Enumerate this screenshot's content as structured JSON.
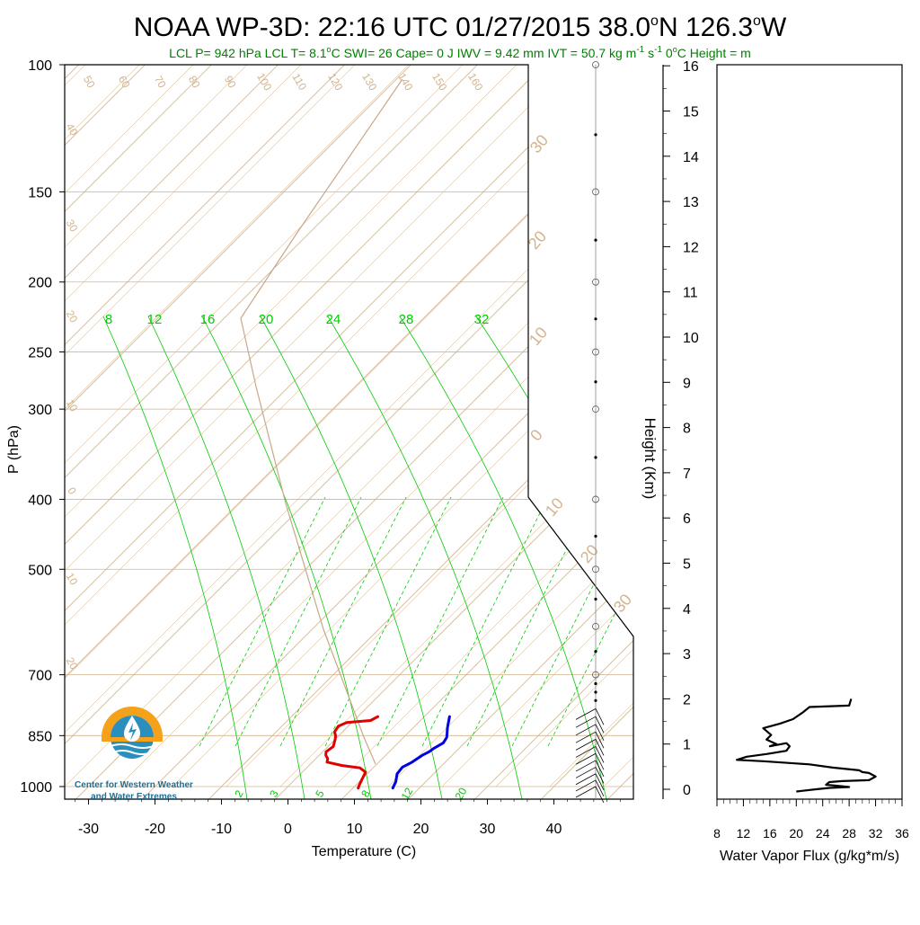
{
  "title": "NOAA WP-3D: 22:16 UTC 01/27/2015  38.0",
  "title_deg1": "o",
  "title_mid": "N 126.3",
  "title_deg2": "o",
  "title_end": "W",
  "subtitle_a": "LCL P= 942 hPa  LCL T= 8.1",
  "subtitle_b": "C  SWI= 26  Cape= 0 J  IWV = 9.42 mm  IVT = 50.7 kg m",
  "subtitle_sup1": "-1",
  "subtitle_s": " s",
  "subtitle_sup2": "-1",
  "subtitle_c": "  0",
  "subtitle_d": "C Height =  m",
  "subtitle_deg": "o",
  "logo": {
    "line1": "Center for Western Weather",
    "line2": "and Water Extremes"
  },
  "colors": {
    "temperature": "#e00000",
    "dewpoint": "#0000e0",
    "isotherm": "#d2b48c",
    "mixing_ratio": "#00cc00",
    "title": "#000000",
    "subtitle": "#008000",
    "logo_orange": "#f5a11a",
    "logo_blue": "#2a8fbd",
    "logo_text": "#1f6f95"
  },
  "chart_data": [
    {
      "type": "line",
      "name": "skew-t",
      "xlabel": "Temperature (C)",
      "ylabel": "P (hPa)",
      "x_ticks": [
        -30,
        -20,
        -10,
        0,
        10,
        20,
        30,
        40
      ],
      "y_ticks": [
        100,
        150,
        200,
        250,
        300,
        400,
        500,
        700,
        850,
        1000
      ],
      "xlim": [
        -34,
        51
      ],
      "ylim": [
        1050,
        100
      ],
      "y_scale": "log",
      "grid": true,
      "mixing_ratio_labels": [
        "8",
        "12",
        "16",
        "20",
        "24",
        "28",
        "32"
      ],
      "mixing_ratio_low_labels": [
        "2",
        "3",
        "5",
        "8",
        "12",
        "20"
      ],
      "isotherm_labels_top": [
        "50",
        "60",
        "70",
        "80",
        "90",
        "100",
        "110",
        "120",
        "130",
        "140",
        "150",
        "160"
      ],
      "isotherm_labels_left": [
        "40",
        "30",
        "20",
        "10",
        "0",
        "10",
        "20"
      ],
      "isotherm_labels_right": [
        "30",
        "20",
        "10",
        "0",
        "10",
        "20",
        "30"
      ],
      "series": [
        {
          "key": "temperature",
          "x": [
            3,
            2.5,
            -0.8,
            -1.5,
            -1.2,
            -0.5,
            0,
            0.8,
            0.5,
            1,
            1.8,
            2.2,
            5,
            8,
            9.5,
            10,
            10.5,
            10.8
          ],
          "y": [
            800,
            810,
            815,
            825,
            840,
            850,
            860,
            880,
            895,
            905,
            915,
            925,
            935,
            942,
            955,
            975,
            995,
            1005
          ]
        },
        {
          "key": "dewpoint",
          "x": [
            13.8,
            14.5,
            15.2,
            16.0,
            16.5,
            16.8,
            16.2,
            16.0,
            15.5,
            15.0,
            14.3,
            14.5,
            15.5,
            16.0
          ],
          "y": [
            800,
            815,
            830,
            845,
            855,
            870,
            885,
            895,
            905,
            925,
            940,
            960,
            985,
            1005
          ]
        }
      ],
      "wind_barbs_levels_hpa": [
        100,
        125,
        150,
        175,
        200,
        225,
        250,
        275,
        300,
        350,
        400,
        450,
        500,
        550,
        600,
        650,
        700,
        720,
        740,
        760,
        780,
        800,
        820,
        840,
        860,
        880,
        900,
        920,
        940,
        960,
        980,
        1000
      ]
    },
    {
      "type": "line",
      "name": "water-vapor-flux",
      "xlabel": "Water Vapor Flux (g/kg*m/s)",
      "ylabel": "Height (Km)",
      "x_ticks": [
        8,
        12,
        16,
        20,
        24,
        28,
        32,
        36
      ],
      "y_ticks": [
        0,
        1,
        2,
        3,
        4,
        5,
        6,
        7,
        8,
        9,
        10,
        11,
        12,
        13,
        14,
        15,
        16
      ],
      "xlim": [
        8,
        36
      ],
      "ylim": [
        -0.2,
        16.4
      ],
      "series": [
        {
          "key": "flux",
          "x": [
            28.3,
            28,
            22,
            21,
            19.5,
            17.5,
            15,
            16.2,
            15.5,
            17,
            16,
            18.5,
            19,
            18.5,
            15.5,
            12.5,
            11,
            15,
            22,
            25.5,
            29.5,
            30,
            31,
            32,
            31.5,
            31,
            27,
            25,
            24.5,
            26,
            28,
            25,
            23,
            20
          ],
          "y": [
            2.0,
            1.85,
            1.82,
            1.7,
            1.55,
            1.45,
            1.35,
            1.2,
            1.1,
            1.0,
            0.95,
            1.02,
            0.95,
            0.85,
            0.78,
            0.72,
            0.65,
            0.62,
            0.55,
            0.48,
            0.42,
            0.38,
            0.36,
            0.28,
            0.24,
            0.2,
            0.18,
            0.16,
            0.1,
            0.08,
            0.05,
            0.03,
            0.0,
            -0.05
          ]
        }
      ]
    }
  ]
}
